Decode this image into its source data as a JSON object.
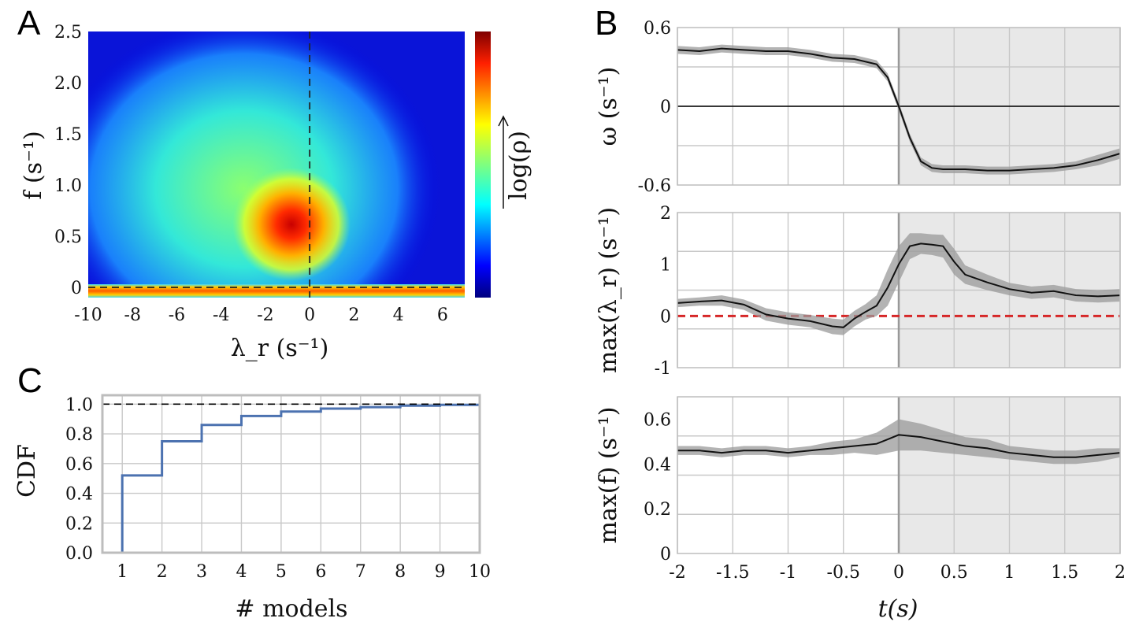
{
  "panels": {
    "A": {
      "letter": "A",
      "chart_data": {
        "type": "heatmap",
        "xlabel": "λ_r (s⁻¹)",
        "ylabel": "f (s⁻¹)",
        "colorbar_label": "log(ρ)",
        "xlim": [
          -10,
          7
        ],
        "ylim": [
          -0.1,
          2.5
        ],
        "xticks": [
          "-10",
          "-8",
          "-6",
          "-4",
          "-2",
          "0",
          "2",
          "4",
          "6"
        ],
        "xtick_values": [
          -10,
          -8,
          -6,
          -4,
          -2,
          0,
          2,
          4,
          6
        ],
        "yticks": [
          "0",
          "0.5",
          "1.0",
          "1.5",
          "2.0",
          "2.5"
        ],
        "ytick_values": [
          0,
          0.5,
          1.0,
          1.5,
          2.0,
          2.5
        ],
        "peak": {
          "x": -0.7,
          "y": 0.6
        },
        "reference_lines": {
          "x": 0,
          "y": 0
        }
      }
    },
    "B": {
      "letter": "B",
      "xlabel": "t(s)",
      "xticks": [
        "-2",
        "-1.5",
        "-1",
        "-0.5",
        "0",
        "0.5",
        "1",
        "1.5",
        "2"
      ],
      "xtick_values": [
        -2,
        -1.5,
        -1,
        -0.5,
        0,
        0.5,
        1,
        1.5,
        2
      ],
      "shaded_region": [
        0,
        2
      ],
      "chart_data": [
        {
          "type": "line",
          "ylabel": "ω (s⁻¹)",
          "ylim": [
            -0.6,
            0.6
          ],
          "yticks": [
            "0.6",
            "0",
            "-0.6"
          ],
          "ytick_values": [
            0.6,
            0,
            -0.6
          ],
          "reference_line": {
            "y": 0,
            "style": "solid",
            "color": "#000000"
          },
          "x": [
            -2,
            -1.8,
            -1.6,
            -1.4,
            -1.2,
            -1.0,
            -0.8,
            -0.6,
            -0.4,
            -0.2,
            -0.1,
            0,
            0.1,
            0.2,
            0.3,
            0.4,
            0.6,
            0.8,
            1.0,
            1.2,
            1.4,
            1.6,
            1.8,
            2.0
          ],
          "y": [
            0.43,
            0.42,
            0.44,
            0.43,
            0.42,
            0.42,
            0.4,
            0.37,
            0.36,
            0.32,
            0.22,
            0.0,
            -0.24,
            -0.42,
            -0.47,
            -0.48,
            -0.48,
            -0.49,
            -0.49,
            -0.48,
            -0.47,
            -0.45,
            -0.41,
            -0.36
          ],
          "band": [
            0.03,
            0.03,
            0.03,
            0.03,
            0.03,
            0.03,
            0.03,
            0.03,
            0.03,
            0.03,
            0.03,
            0.03,
            0.03,
            0.03,
            0.03,
            0.03,
            0.03,
            0.03,
            0.03,
            0.03,
            0.03,
            0.03,
            0.04,
            0.04
          ]
        },
        {
          "type": "line",
          "ylabel": "max(λ_r) (s⁻¹)",
          "ylim": [
            -1,
            2
          ],
          "yticks": [
            "2",
            "1",
            "0",
            "-1"
          ],
          "ytick_values": [
            2,
            1,
            0,
            -1
          ],
          "reference_line": {
            "y": 0,
            "style": "dashed",
            "color": "#d62728"
          },
          "x": [
            -2,
            -1.8,
            -1.6,
            -1.4,
            -1.2,
            -1.0,
            -0.8,
            -0.6,
            -0.5,
            -0.4,
            -0.3,
            -0.2,
            -0.1,
            0,
            0.1,
            0.2,
            0.3,
            0.4,
            0.5,
            0.6,
            0.8,
            1.0,
            1.2,
            1.4,
            1.6,
            1.8,
            2.0
          ],
          "y": [
            0.25,
            0.28,
            0.3,
            0.22,
            0.03,
            -0.05,
            -0.1,
            -0.2,
            -0.22,
            -0.05,
            0.08,
            0.2,
            0.55,
            1.0,
            1.35,
            1.4,
            1.38,
            1.35,
            1.05,
            0.8,
            0.65,
            0.52,
            0.45,
            0.48,
            0.4,
            0.38,
            0.4
          ],
          "band": [
            0.08,
            0.08,
            0.1,
            0.1,
            0.12,
            0.12,
            0.12,
            0.15,
            0.15,
            0.15,
            0.15,
            0.2,
            0.35,
            0.35,
            0.25,
            0.2,
            0.2,
            0.22,
            0.25,
            0.18,
            0.15,
            0.12,
            0.12,
            0.12,
            0.12,
            0.12,
            0.12
          ]
        },
        {
          "type": "line",
          "ylabel": "max(f) (s⁻¹)",
          "ylim": [
            0,
            0.7
          ],
          "yticks": [
            "0.6",
            "0.4",
            "0.2",
            "0"
          ],
          "ytick_values": [
            0.6,
            0.4,
            0.2,
            0
          ],
          "x": [
            -2,
            -1.8,
            -1.6,
            -1.4,
            -1.2,
            -1.0,
            -0.8,
            -0.6,
            -0.4,
            -0.2,
            -0.1,
            0,
            0.2,
            0.4,
            0.6,
            0.8,
            1.0,
            1.2,
            1.4,
            1.6,
            1.8,
            2.0
          ],
          "y": [
            0.46,
            0.46,
            0.45,
            0.46,
            0.46,
            0.45,
            0.46,
            0.47,
            0.48,
            0.49,
            0.51,
            0.53,
            0.52,
            0.5,
            0.48,
            0.47,
            0.45,
            0.44,
            0.43,
            0.43,
            0.44,
            0.45
          ],
          "band": [
            0.02,
            0.02,
            0.02,
            0.02,
            0.02,
            0.02,
            0.02,
            0.03,
            0.03,
            0.05,
            0.06,
            0.07,
            0.06,
            0.05,
            0.04,
            0.04,
            0.03,
            0.03,
            0.03,
            0.03,
            0.03,
            0.02
          ]
        }
      ]
    },
    "C": {
      "letter": "C",
      "chart_data": {
        "type": "line",
        "step": true,
        "xlabel": "# models",
        "ylabel": "CDF",
        "xlim": [
          0.5,
          10
        ],
        "ylim": [
          0,
          1.06
        ],
        "xticks": [
          "1",
          "2",
          "3",
          "4",
          "5",
          "6",
          "7",
          "8",
          "9",
          "10"
        ],
        "yticks": [
          "0.0",
          "0.2",
          "0.4",
          "0.6",
          "0.8",
          "1.0"
        ],
        "ytick_values": [
          0.0,
          0.2,
          0.4,
          0.6,
          0.8,
          1.0
        ],
        "x": [
          1,
          2,
          3,
          4,
          5,
          6,
          7,
          8,
          9,
          10
        ],
        "y": [
          0.52,
          0.75,
          0.86,
          0.92,
          0.95,
          0.97,
          0.98,
          0.99,
          0.995,
          1.0
        ],
        "reference_line": {
          "y": 1.0,
          "style": "dashed",
          "color": "#000000"
        },
        "line_color": "#4c72b0"
      }
    }
  }
}
